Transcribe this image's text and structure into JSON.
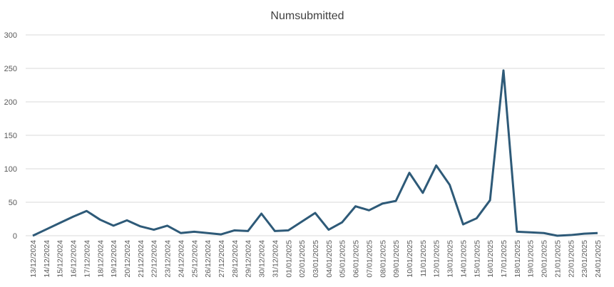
{
  "chart_data": {
    "type": "line",
    "title": "Numsubmitted",
    "categories": [
      "13/12/2024",
      "14/12/2024",
      "15/12/2024",
      "16/12/2024",
      "17/12/2024",
      "18/12/2024",
      "19/12/2024",
      "20/12/2024",
      "21/12/2024",
      "22/12/2024",
      "23/12/2024",
      "24/12/2024",
      "25/12/2024",
      "26/12/2024",
      "27/12/2024",
      "28/12/2024",
      "29/12/2024",
      "30/12/2024",
      "31/12/2024",
      "01/01/2025",
      "02/01/2025",
      "03/01/2025",
      "04/01/2025",
      "05/01/2025",
      "06/01/2025",
      "07/01/2025",
      "08/01/2025",
      "09/01/2025",
      "10/01/2025",
      "11/01/2025",
      "12/01/2025",
      "13/01/2025",
      "14/01/2025",
      "15/01/2025",
      "16/01/2025",
      "17/01/2025",
      "18/01/2025",
      "19/01/2025",
      "20/01/2025",
      "21/01/2025",
      "22/01/2025",
      "23/01/2025",
      "24/01/2025"
    ],
    "values": [
      0,
      9.5,
      19,
      28.5,
      37,
      24,
      15,
      23,
      14,
      9,
      15,
      4,
      6,
      4,
      2,
      8,
      7,
      33,
      7,
      8,
      21,
      34,
      9,
      20,
      44,
      38,
      48,
      52,
      94,
      64,
      105,
      76,
      17,
      26,
      53,
      247,
      6,
      5,
      4,
      0,
      1,
      3,
      4
    ],
    "color": "#2e5a78",
    "ylim": [
      0,
      300
    ],
    "yticks": [
      0,
      50,
      100,
      150,
      200,
      250,
      300
    ],
    "grid": true
  }
}
